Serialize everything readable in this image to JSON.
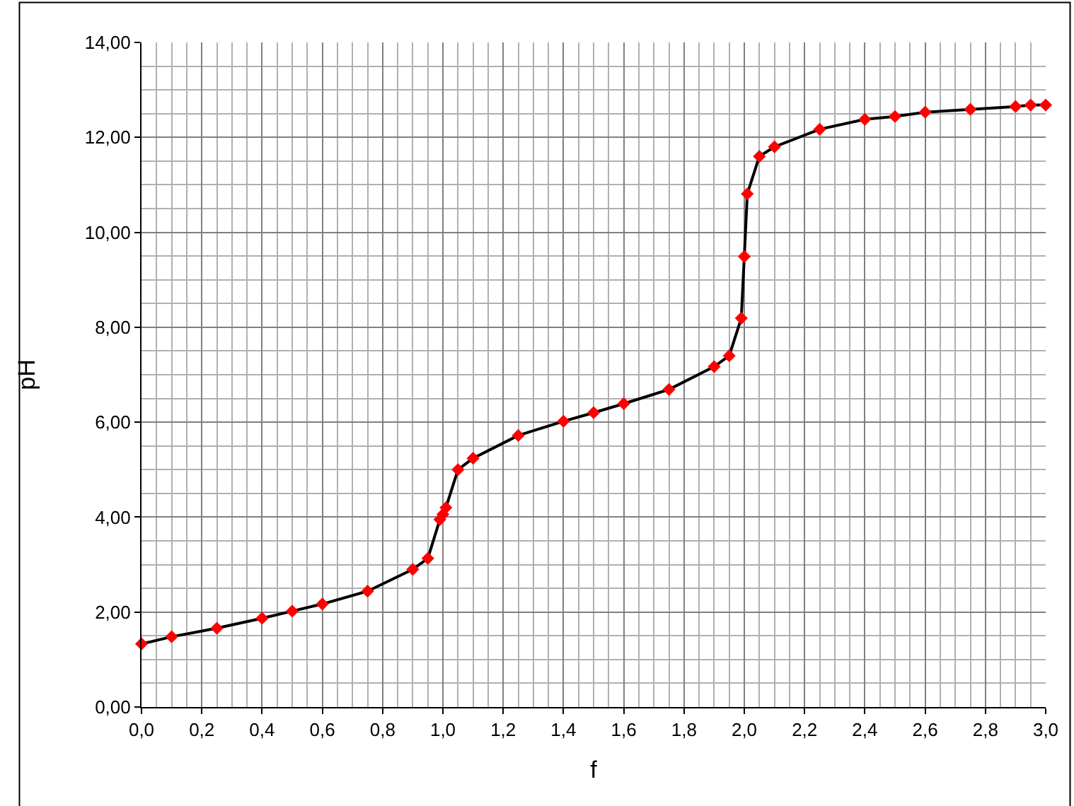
{
  "chart_data": {
    "type": "line",
    "xlabel": "f",
    "ylabel": "pH",
    "x": [
      0,
      0.1,
      0.25,
      0.4,
      0.5,
      0.6,
      0.75,
      0.9,
      0.95,
      0.99,
      1.0,
      1.01,
      1.05,
      1.1,
      1.25,
      1.4,
      1.5,
      1.6,
      1.75,
      1.9,
      1.95,
      1.99,
      2.0,
      2.01,
      2.05,
      2.1,
      2.25,
      2.4,
      2.5,
      2.6,
      2.75,
      2.9,
      2.95,
      3.0
    ],
    "series": [
      {
        "color": "#000000",
        "colors": [
          "#ff0000",
          "#ff0000",
          "#ff0000",
          "#ff0000",
          "#ff0000",
          "#ff0000",
          "#ff0000",
          "#ff0000",
          "#ff0000",
          "#ff0000",
          "#ff0000",
          "#ff0000",
          "#ff0000",
          "#ff0000",
          "#ff0000",
          "#ff0000",
          "#ff0000",
          "#ff0000",
          "#ff0000",
          "#ff0000",
          "#ff0000",
          "#ff0000",
          "#ff0000",
          "#ff0000",
          "#ff0000",
          "#ff0000",
          "#ff0000",
          "#ff0000",
          "#ff0000",
          "#ff0000",
          "#ff0000",
          "#ff0000",
          "#ff0000",
          "#ff0000"
        ],
        "values": [
          1.33,
          1.48,
          1.66,
          1.87,
          2.02,
          2.17,
          2.44,
          2.9,
          3.13,
          3.95,
          4.06,
          4.2,
          5.0,
          5.24,
          5.72,
          6.02,
          6.2,
          6.39,
          6.69,
          7.17,
          7.4,
          8.19,
          9.49,
          10.81,
          11.6,
          11.8,
          12.17,
          12.38,
          12.44,
          12.53,
          12.59,
          12.65,
          12.68,
          12.68
        ]
      }
    ],
    "marker": "diamond",
    "line_style": "solid",
    "grid": true,
    "xlim": [
      0,
      3
    ],
    "ylim": [
      0,
      14
    ],
    "xticks": [
      {
        "value": 0,
        "label": "0,0"
      },
      {
        "value": 0.2,
        "label": "0,2"
      },
      {
        "value": 0.4,
        "label": "0,4"
      },
      {
        "value": 0.6,
        "label": "0,6"
      },
      {
        "value": 0.8,
        "label": "0,8"
      },
      {
        "value": 1.0,
        "label": "1,0"
      },
      {
        "value": 1.2,
        "label": "1,2"
      },
      {
        "value": 1.4,
        "label": "1,4"
      },
      {
        "value": 1.6,
        "label": "1,6"
      },
      {
        "value": 1.8,
        "label": "1,8"
      },
      {
        "value": 2.0,
        "label": "2,0"
      },
      {
        "value": 2.2,
        "label": "2,2"
      },
      {
        "value": 2.4,
        "label": "2,4"
      },
      {
        "value": 2.6,
        "label": "2,6"
      },
      {
        "value": 2.8,
        "label": "2,8"
      },
      {
        "value": 3.0,
        "label": "3,0"
      }
    ],
    "yticks": [
      {
        "value": 0,
        "label": "0,00"
      },
      {
        "value": 2,
        "label": "2,00"
      },
      {
        "value": 4,
        "label": "4,00"
      },
      {
        "value": 6,
        "label": "6,00"
      },
      {
        "value": 8,
        "label": "8,00"
      },
      {
        "value": 10,
        "label": "10,00"
      },
      {
        "value": 12,
        "label": "12,00"
      },
      {
        "value": 14,
        "label": "14,00"
      }
    ]
  }
}
